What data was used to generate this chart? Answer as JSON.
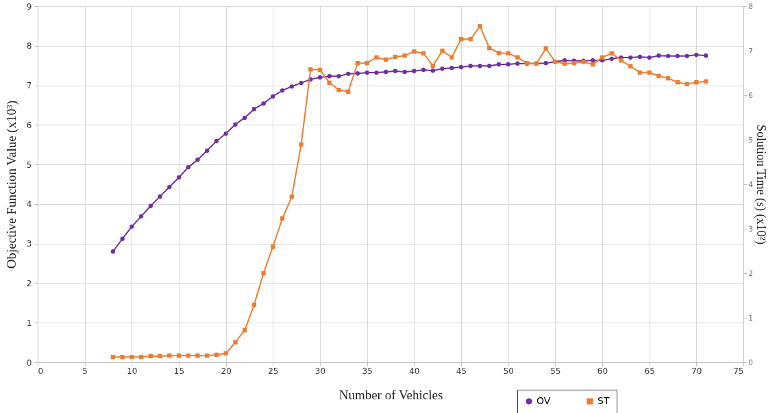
{
  "chart_data": {
    "type": "line",
    "xlabel": "Number of Vehicles",
    "ylabel": "Objective Function Value (x10³)",
    "y2label": "Solution Time (s)  (x10²)",
    "x": [
      8,
      9,
      10,
      11,
      12,
      13,
      14,
      15,
      16,
      17,
      18,
      19,
      20,
      21,
      22,
      23,
      24,
      25,
      26,
      27,
      28,
      29,
      30,
      31,
      32,
      33,
      34,
      35,
      36,
      37,
      38,
      39,
      40,
      41,
      42,
      43,
      44,
      45,
      46,
      47,
      48,
      49,
      50,
      51,
      52,
      53,
      54,
      55,
      56,
      57,
      58,
      59,
      60,
      61,
      62,
      63,
      64,
      65,
      66,
      67,
      68,
      69,
      70,
      71
    ],
    "series": [
      {
        "name": "OV",
        "color": "#7030a0",
        "marker": "circle",
        "values": [
          2.8,
          3.12,
          3.43,
          3.69,
          3.95,
          4.19,
          4.43,
          4.67,
          4.93,
          5.12,
          5.35,
          5.59,
          5.78,
          6.01,
          6.18,
          6.4,
          6.54,
          6.72,
          6.87,
          6.97,
          7.06,
          7.15,
          7.2,
          7.23,
          7.23,
          7.29,
          7.3,
          7.32,
          7.32,
          7.34,
          7.36,
          7.34,
          7.36,
          7.39,
          7.37,
          7.42,
          7.44,
          7.46,
          7.49,
          7.49,
          7.49,
          7.53,
          7.53,
          7.55,
          7.55,
          7.55,
          7.56,
          7.6,
          7.63,
          7.62,
          7.62,
          7.63,
          7.63,
          7.67,
          7.7,
          7.7,
          7.72,
          7.7,
          7.75,
          7.74,
          7.74,
          7.74,
          7.77,
          7.75
        ]
      },
      {
        "name": "ST",
        "color": "#ed7d31",
        "marker": "square",
        "axis": "y2",
        "values": [
          0.12,
          0.12,
          0.12,
          0.12,
          0.14,
          0.14,
          0.15,
          0.15,
          0.15,
          0.15,
          0.15,
          0.17,
          0.2,
          0.45,
          0.72,
          1.29,
          2.0,
          2.6,
          3.23,
          3.72,
          4.89,
          6.58,
          6.57,
          6.28,
          6.12,
          6.08,
          6.72,
          6.72,
          6.85,
          6.8,
          6.86,
          6.89,
          6.98,
          6.94,
          6.66,
          7.0,
          6.85,
          7.26,
          7.26,
          7.55,
          7.06,
          6.95,
          6.94,
          6.85,
          6.72,
          6.71,
          7.05,
          6.75,
          6.71,
          6.72,
          6.75,
          6.69,
          6.85,
          6.94,
          6.78,
          6.65,
          6.51,
          6.51,
          6.43,
          6.38,
          6.29,
          6.25,
          6.29,
          6.31
        ]
      }
    ],
    "xlim": [
      0,
      75
    ],
    "xticks": [
      0,
      5,
      10,
      15,
      20,
      25,
      30,
      35,
      40,
      45,
      50,
      55,
      60,
      65,
      70,
      75
    ],
    "ylim": [
      0,
      9
    ],
    "yticks": [
      0,
      1,
      2,
      3,
      4,
      5,
      6,
      7,
      8,
      9
    ],
    "y2lim": [
      0,
      8
    ],
    "y2ticks": [
      0,
      1,
      2,
      3,
      4,
      5,
      6,
      7,
      8
    ],
    "grid": true,
    "legend": "bottom"
  }
}
